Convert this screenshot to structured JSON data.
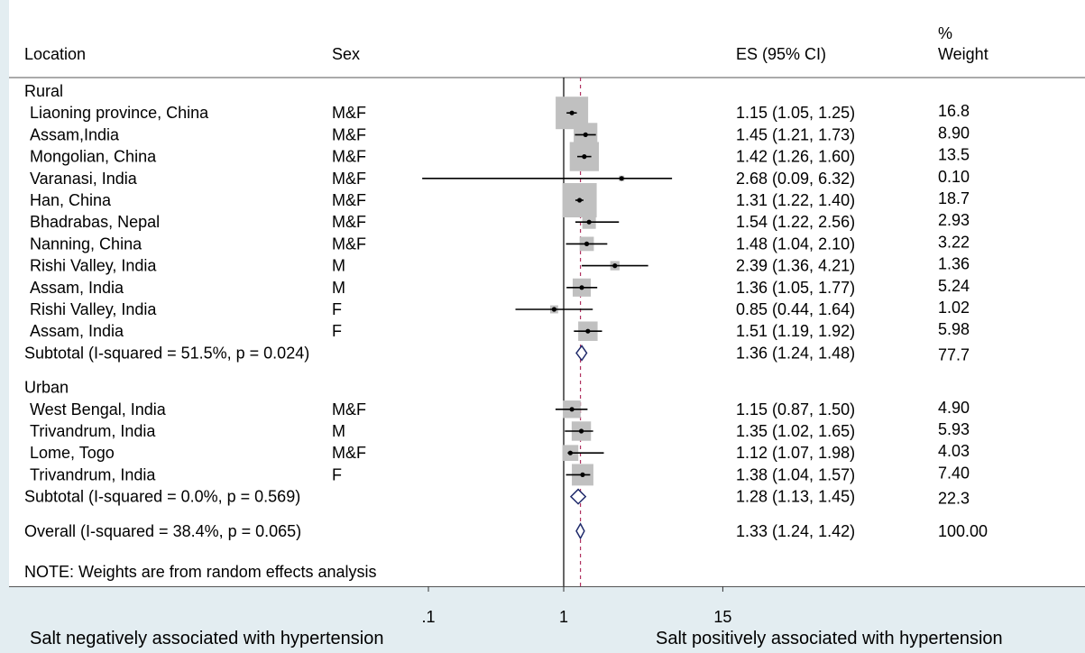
{
  "chart_data": {
    "type": "forest",
    "columns": {
      "location": "Location",
      "sex": "Sex",
      "es": "ES (95% CI)",
      "weight_line1": "%",
      "weight_line2": "Weight"
    },
    "x_scale": "log",
    "null_line": 1,
    "overall_effect": 1.33,
    "x_ticks": [
      {
        "value": 0.1,
        "label": ".1"
      },
      {
        "value": 1,
        "label": "1"
      },
      {
        "value": 15,
        "label": "15"
      }
    ],
    "x_label_left": "Salt negatively associated with hypertension",
    "x_label_right": "Salt positively associated with hypertension",
    "rows": [
      {
        "kind": "group",
        "label": "Rural"
      },
      {
        "kind": "study",
        "label": "Liaoning province, China",
        "sex": "M&F",
        "es": 1.15,
        "lo": 1.05,
        "hi": 1.25,
        "es_text": "1.15 (1.05, 1.25)",
        "weight": 16.8,
        "weight_text": "16.8"
      },
      {
        "kind": "study",
        "label": "Assam,India",
        "sex": "M&F",
        "es": 1.45,
        "lo": 1.21,
        "hi": 1.73,
        "es_text": "1.45 (1.21, 1.73)",
        "weight": 8.9,
        "weight_text": "8.90"
      },
      {
        "kind": "study",
        "label": "Mongolian, China",
        "sex": "M&F",
        "es": 1.42,
        "lo": 1.26,
        "hi": 1.6,
        "es_text": "1.42 (1.26, 1.60)",
        "weight": 13.5,
        "weight_text": "13.5"
      },
      {
        "kind": "study",
        "label": "Varanasi, India",
        "sex": "M&F",
        "es": 2.68,
        "lo": 0.09,
        "hi": 6.32,
        "es_text": "2.68 (0.09, 6.32)",
        "weight": 0.1,
        "weight_text": "0.10"
      },
      {
        "kind": "study",
        "label": "Han, China",
        "sex": "M&F",
        "es": 1.31,
        "lo": 1.22,
        "hi": 1.4,
        "es_text": "1.31 (1.22, 1.40)",
        "weight": 18.7,
        "weight_text": "18.7"
      },
      {
        "kind": "study",
        "label": "Bhadrabas, Nepal",
        "sex": "M&F",
        "es": 1.54,
        "lo": 1.22,
        "hi": 2.56,
        "es_text": "1.54 (1.22, 2.56)",
        "weight": 2.93,
        "weight_text": "2.93"
      },
      {
        "kind": "study",
        "label": "Nanning, China",
        "sex": "M&F",
        "es": 1.48,
        "lo": 1.04,
        "hi": 2.1,
        "es_text": "1.48 (1.04, 2.10)",
        "weight": 3.22,
        "weight_text": "3.22"
      },
      {
        "kind": "study",
        "label": "Rishi Valley, India",
        "sex": "M",
        "es": 2.39,
        "lo": 1.36,
        "hi": 4.21,
        "es_text": "2.39 (1.36, 4.21)",
        "weight": 1.36,
        "weight_text": "1.36"
      },
      {
        "kind": "study",
        "label": "Assam, India",
        "sex": "M",
        "es": 1.36,
        "lo": 1.05,
        "hi": 1.77,
        "es_text": "1.36 (1.05, 1.77)",
        "weight": 5.24,
        "weight_text": "5.24"
      },
      {
        "kind": "study",
        "label": "Rishi Valley, India",
        "sex": "F",
        "es": 0.85,
        "lo": 0.44,
        "hi": 1.64,
        "es_text": "0.85 (0.44, 1.64)",
        "weight": 1.02,
        "weight_text": "1.02"
      },
      {
        "kind": "study",
        "label": "Assam, India",
        "sex": "F",
        "es": 1.51,
        "lo": 1.19,
        "hi": 1.92,
        "es_text": "1.51 (1.19, 1.92)",
        "weight": 5.98,
        "weight_text": "5.98"
      },
      {
        "kind": "subtotal",
        "label": "Subtotal  (I-squared = 51.5%, p = 0.024)",
        "es": 1.36,
        "lo": 1.24,
        "hi": 1.48,
        "es_text": "1.36 (1.24, 1.48)",
        "weight": 77.7,
        "weight_text": "77.7"
      },
      {
        "kind": "spacer"
      },
      {
        "kind": "group",
        "label": "Urban"
      },
      {
        "kind": "study",
        "label": "West Bengal, India",
        "sex": "M&F",
        "es": 1.15,
        "lo": 0.87,
        "hi": 1.5,
        "es_text": "1.15 (0.87, 1.50)",
        "weight": 4.9,
        "weight_text": "4.90"
      },
      {
        "kind": "study",
        "label": "Trivandrum, India",
        "sex": "M",
        "es": 1.35,
        "lo": 1.02,
        "hi": 1.65,
        "es_text": "1.35 (1.02, 1.65)",
        "weight": 5.93,
        "weight_text": "5.93"
      },
      {
        "kind": "study",
        "label": "Lome, Togo",
        "sex": "M&F",
        "es": 1.12,
        "lo": 1.07,
        "hi": 1.98,
        "es_text": "1.12 (1.07, 1.98)",
        "weight": 4.03,
        "weight_text": "4.03"
      },
      {
        "kind": "study",
        "label": "Trivandrum, India",
        "sex": "F",
        "es": 1.38,
        "lo": 1.04,
        "hi": 1.57,
        "es_text": "1.38 (1.04, 1.57)",
        "weight": 7.4,
        "weight_text": "7.40"
      },
      {
        "kind": "subtotal",
        "label": "Subtotal  (I-squared = 0.0%, p = 0.569)",
        "es": 1.28,
        "lo": 1.13,
        "hi": 1.45,
        "es_text": "1.28 (1.13, 1.45)",
        "weight": 22.3,
        "weight_text": "22.3"
      },
      {
        "kind": "spacer"
      },
      {
        "kind": "overall",
        "label": "Overall  (I-squared = 38.4%, p = 0.065)",
        "es": 1.33,
        "lo": 1.24,
        "hi": 1.42,
        "es_text": "1.33 (1.24, 1.42)",
        "weight": 100.0,
        "weight_text": "100.00"
      }
    ],
    "note": "NOTE: Weights are from random effects analysis",
    "colors": {
      "background": "#ffffff",
      "panel": "#e3edf1",
      "box": "#c0c0c0",
      "point": "#000000",
      "ci_line": "#000000",
      "diamond": "#1f2a6b",
      "overall_line": "#b03060",
      "text": "#000000"
    }
  }
}
